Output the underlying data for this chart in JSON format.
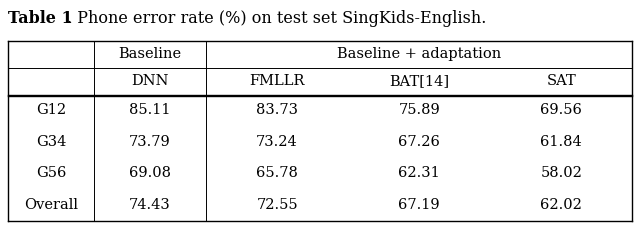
{
  "title_bold": "Table 1",
  "title_rest": ". Phone error rate (%) on test set SingKids-English.",
  "header_row1_col1": "Baseline",
  "header_row1_col2": "Baseline + adaptation",
  "header_row2": [
    "DNN",
    "FMLLR",
    "BAT[14]",
    "SAT"
  ],
  "rows": [
    [
      "G12",
      "85.11",
      "83.73",
      "75.89",
      "69.56"
    ],
    [
      "G34",
      "73.79",
      "73.24",
      "67.26",
      "61.84"
    ],
    [
      "G56",
      "69.08",
      "65.78",
      "62.31",
      "58.02"
    ],
    [
      "Overall",
      "74.43",
      "72.55",
      "67.19",
      "62.02"
    ]
  ],
  "background_color": "#ffffff",
  "text_color": "#000000",
  "fontsize": 10.5,
  "title_fontsize": 11.5
}
